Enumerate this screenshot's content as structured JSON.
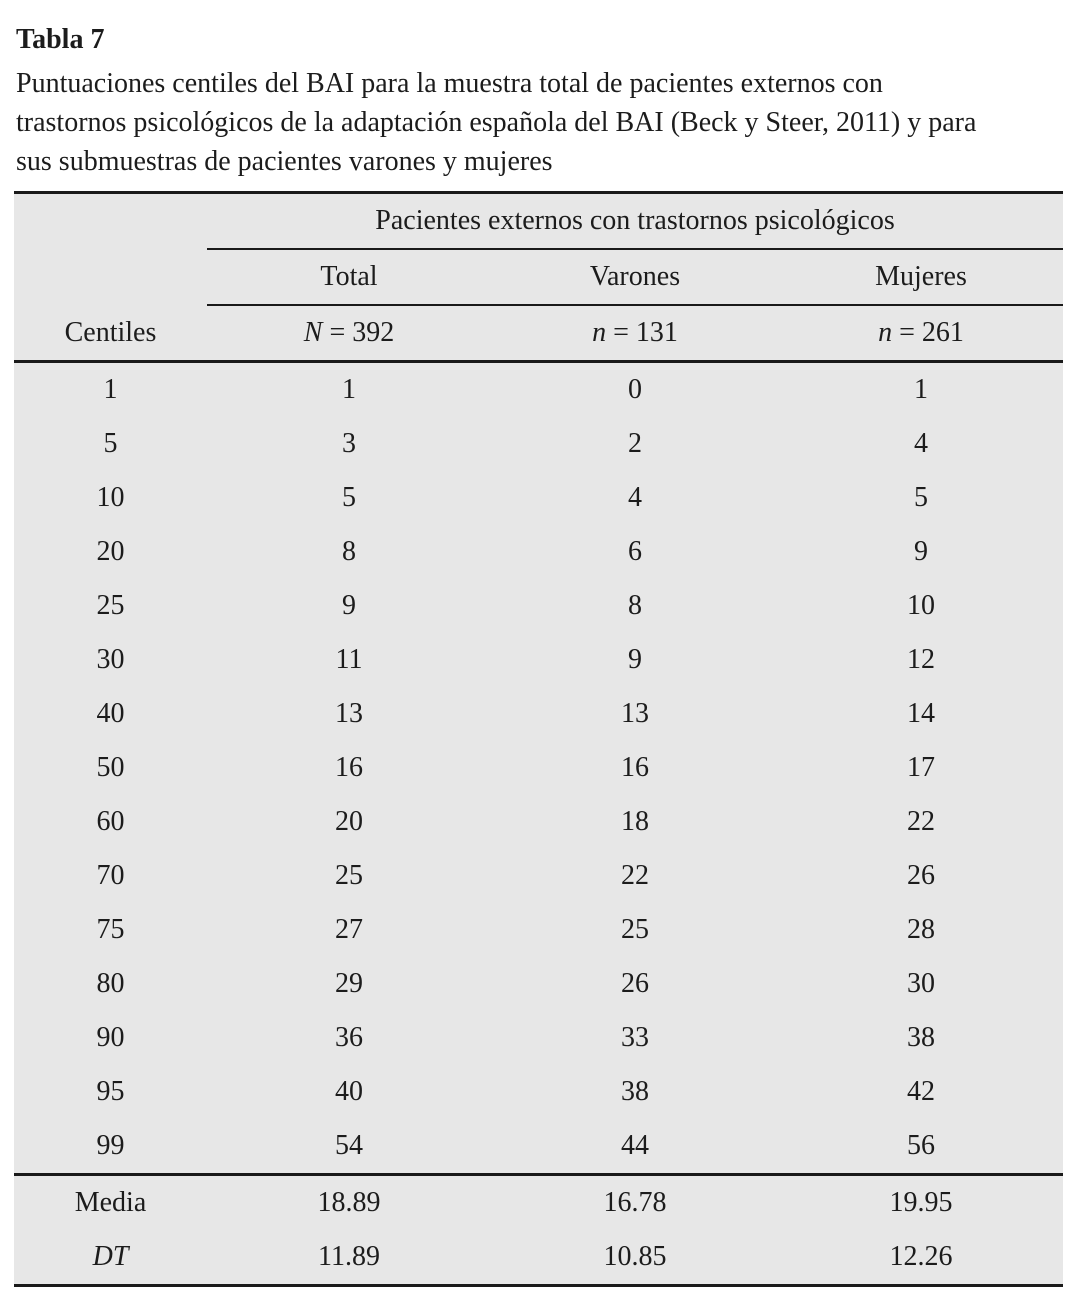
{
  "title": "Tabla 7",
  "caption_lines": [
    "Puntuaciones centiles del BAI para la muestra total de pacientes externos con",
    "trastornos psicológicos de la adaptación española del BAI (Beck y Steer, 2011) y para",
    "sus submuestras de pacientes varones y mujeres"
  ],
  "table": {
    "group_header": "Pacientes externos con trastornos psicológicos",
    "row_header": "Centiles",
    "columns": [
      {
        "label": "Total",
        "n_symbol": "N",
        "n_rest": "= 392"
      },
      {
        "label": "Varones",
        "n_symbol": "n",
        "n_rest": "= 131"
      },
      {
        "label": "Mujeres",
        "n_symbol": "n",
        "n_rest": "= 261"
      }
    ],
    "rows": [
      [
        "1",
        "1",
        "0",
        "1"
      ],
      [
        "5",
        "3",
        "2",
        "4"
      ],
      [
        "10",
        "5",
        "4",
        "5"
      ],
      [
        "20",
        "8",
        "6",
        "9"
      ],
      [
        "25",
        "9",
        "8",
        "10"
      ],
      [
        "30",
        "11",
        "9",
        "12"
      ],
      [
        "40",
        "13",
        "13",
        "14"
      ],
      [
        "50",
        "16",
        "16",
        "17"
      ],
      [
        "60",
        "20",
        "18",
        "22"
      ],
      [
        "70",
        "25",
        "22",
        "26"
      ],
      [
        "75",
        "27",
        "25",
        "28"
      ],
      [
        "80",
        "29",
        "26",
        "30"
      ],
      [
        "90",
        "36",
        "33",
        "38"
      ],
      [
        "95",
        "40",
        "38",
        "42"
      ],
      [
        "99",
        "54",
        "44",
        "56"
      ]
    ],
    "stats_rows": [
      [
        "Media",
        "18.89",
        "16.78",
        "19.95"
      ],
      [
        "DT",
        "11.89",
        "10.85",
        "12.26"
      ]
    ]
  },
  "colors": {
    "table_background": "#e7e7e7",
    "text": "#1c1c1c",
    "rule": "#1a1a1a"
  }
}
